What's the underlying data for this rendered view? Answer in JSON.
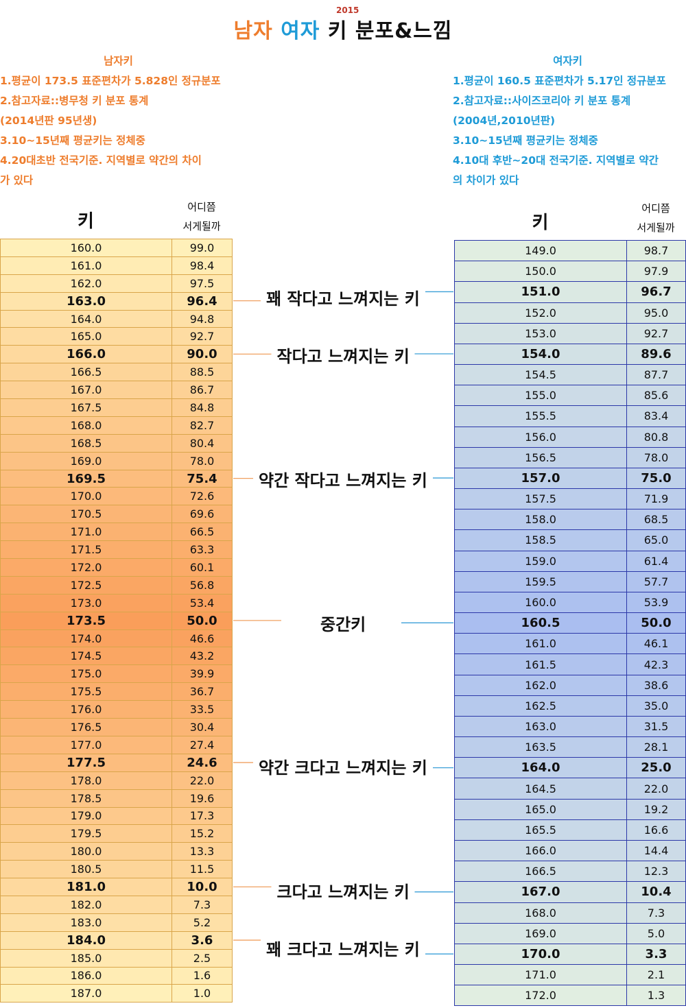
{
  "header": {
    "title_male": "남자",
    "title_female": "여자",
    "title_rest": "키 분포&느낌",
    "year": "2015"
  },
  "info_male": {
    "header": "남자키",
    "lines": [
      "1.평균이 173.5 표준편차가 5.828인 정규분포",
      "2.참고자료::병무청 키 분포 통계",
      "(2014년판 95년생)",
      "3.10~15년째 평균키는 정체중",
      "4.20대초반 전국기준. 지역별로 약간의 차이",
      "가 있다"
    ]
  },
  "info_female": {
    "header": "여자키",
    "lines": [
      "1.평균이 160.5 표준편차가 5.17인 정규분포",
      "2.참고자료::사이즈코리아 키 분포 통계",
      "(2004년,2010년판)",
      "3.10~15년째 평균키는 정체중",
      "4.10대 후반~20대 전국기준. 지역별로 약간",
      "의 차이가 있다"
    ]
  },
  "col_headers": {
    "height": "키",
    "rank_line1": "어디쯤",
    "rank_line2": "서게될까"
  },
  "colors": {
    "male": "#ee7d2d",
    "female": "#1e9bd7",
    "male_line": "#f0a060",
    "female_line": "#3a9fd8"
  },
  "chart_data": [
    {
      "type": "table",
      "name": "남자키",
      "columns": [
        "키",
        "어디쯤 서게될까"
      ],
      "rows": [
        [
          "160.0",
          "99.0"
        ],
        [
          "161.0",
          "98.4"
        ],
        [
          "162.0",
          "97.5"
        ],
        [
          "163.0",
          "96.4"
        ],
        [
          "164.0",
          "94.8"
        ],
        [
          "165.0",
          "92.7"
        ],
        [
          "166.0",
          "90.0"
        ],
        [
          "166.5",
          "88.5"
        ],
        [
          "167.0",
          "86.7"
        ],
        [
          "167.5",
          "84.8"
        ],
        [
          "168.0",
          "82.7"
        ],
        [
          "168.5",
          "80.4"
        ],
        [
          "169.0",
          "78.0"
        ],
        [
          "169.5",
          "75.4"
        ],
        [
          "170.0",
          "72.6"
        ],
        [
          "170.5",
          "69.6"
        ],
        [
          "171.0",
          "66.5"
        ],
        [
          "171.5",
          "63.3"
        ],
        [
          "172.0",
          "60.1"
        ],
        [
          "172.5",
          "56.8"
        ],
        [
          "173.0",
          "53.4"
        ],
        [
          "173.5",
          "50.0"
        ],
        [
          "174.0",
          "46.6"
        ],
        [
          "174.5",
          "43.2"
        ],
        [
          "175.0",
          "39.9"
        ],
        [
          "175.5",
          "36.7"
        ],
        [
          "176.0",
          "33.5"
        ],
        [
          "176.5",
          "30.4"
        ],
        [
          "177.0",
          "27.4"
        ],
        [
          "177.5",
          "24.6"
        ],
        [
          "178.0",
          "22.0"
        ],
        [
          "178.5",
          "19.6"
        ],
        [
          "179.0",
          "17.3"
        ],
        [
          "179.5",
          "15.2"
        ],
        [
          "180.0",
          "13.3"
        ],
        [
          "180.5",
          "11.5"
        ],
        [
          "181.0",
          "10.0"
        ],
        [
          "182.0",
          "7.3"
        ],
        [
          "183.0",
          "5.2"
        ],
        [
          "184.0",
          "3.6"
        ],
        [
          "185.0",
          "2.5"
        ],
        [
          "186.0",
          "1.6"
        ],
        [
          "187.0",
          "1.0"
        ]
      ],
      "bold_rows": [
        3,
        6,
        13,
        21,
        29,
        36,
        39
      ]
    },
    {
      "type": "table",
      "name": "여자키",
      "columns": [
        "키",
        "어디쯤 서게될까"
      ],
      "rows": [
        [
          "149.0",
          "98.7"
        ],
        [
          "150.0",
          "97.9"
        ],
        [
          "151.0",
          "96.7"
        ],
        [
          "152.0",
          "95.0"
        ],
        [
          "153.0",
          "92.7"
        ],
        [
          "154.0",
          "89.6"
        ],
        [
          "154.5",
          "87.7"
        ],
        [
          "155.0",
          "85.6"
        ],
        [
          "155.5",
          "83.4"
        ],
        [
          "156.0",
          "80.8"
        ],
        [
          "156.5",
          "78.0"
        ],
        [
          "157.0",
          "75.0"
        ],
        [
          "157.5",
          "71.9"
        ],
        [
          "158.0",
          "68.5"
        ],
        [
          "158.5",
          "65.0"
        ],
        [
          "159.0",
          "61.4"
        ],
        [
          "159.5",
          "57.7"
        ],
        [
          "160.0",
          "53.9"
        ],
        [
          "160.5",
          "50.0"
        ],
        [
          "161.0",
          "46.1"
        ],
        [
          "161.5",
          "42.3"
        ],
        [
          "162.0",
          "38.6"
        ],
        [
          "162.5",
          "35.0"
        ],
        [
          "163.0",
          "31.5"
        ],
        [
          "163.5",
          "28.1"
        ],
        [
          "164.0",
          "25.0"
        ],
        [
          "164.5",
          "22.0"
        ],
        [
          "165.0",
          "19.2"
        ],
        [
          "165.5",
          "16.6"
        ],
        [
          "166.0",
          "14.4"
        ],
        [
          "166.5",
          "12.3"
        ],
        [
          "167.0",
          "10.4"
        ],
        [
          "168.0",
          "7.3"
        ],
        [
          "169.0",
          "5.0"
        ],
        [
          "170.0",
          "3.3"
        ],
        [
          "171.0",
          "2.1"
        ],
        [
          "172.0",
          "1.3"
        ]
      ],
      "bold_rows": [
        2,
        5,
        11,
        18,
        25,
        31,
        34
      ]
    }
  ],
  "annotations": [
    {
      "label": "꽤 작다고 느껴지는 키",
      "male_row": 3,
      "female_row": 2
    },
    {
      "label": "작다고 느껴지는 키",
      "male_row": 6,
      "female_row": 5
    },
    {
      "label": "약간 작다고 느껴지는 키",
      "male_row": 13,
      "female_row": 11
    },
    {
      "label": "중간키",
      "male_row": 21,
      "female_row": 18
    },
    {
      "label": "약간 크다고 느껴지는 키",
      "male_row": 29,
      "female_row": 25
    },
    {
      "label": "크다고 느껴지는 키",
      "male_row": 36,
      "female_row": 31
    },
    {
      "label": "꽤 크다고 느껴지는 키",
      "male_row": 39,
      "female_row": 34
    }
  ]
}
